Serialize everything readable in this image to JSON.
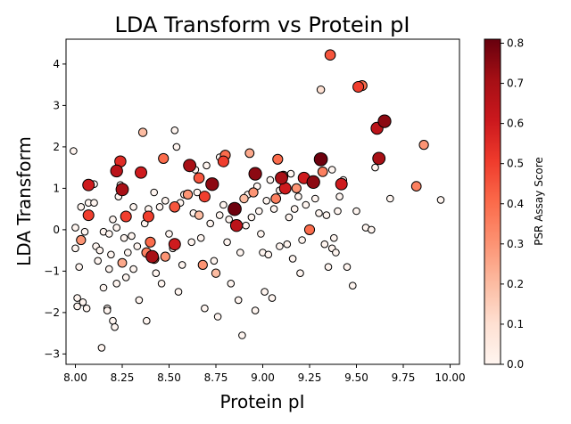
{
  "chart_data": {
    "type": "scatter",
    "title": "LDA Transform vs Protein pI",
    "xlabel": "Protein pI",
    "ylabel": "LDA Transform",
    "xlim": [
      7.95,
      10.05
    ],
    "ylim": [
      -3.25,
      4.6
    ],
    "xticks": [
      "8.00",
      "8.25",
      "8.50",
      "8.75",
      "9.00",
      "9.25",
      "9.50",
      "9.75",
      "10.00"
    ],
    "xtick_values": [
      8.0,
      8.25,
      8.5,
      8.75,
      9.0,
      9.25,
      9.5,
      9.75,
      10.0
    ],
    "yticks": [
      "−3",
      "−2",
      "−1",
      "0",
      "1",
      "2",
      "3",
      "4"
    ],
    "ytick_values": [
      -3,
      -2,
      -1,
      0,
      1,
      2,
      3,
      4
    ],
    "grid": false,
    "colorbar": {
      "label": "PSR Assay Score",
      "range": [
        0.0,
        0.81
      ],
      "ticks": [
        "0.0",
        "0.1",
        "0.2",
        "0.3",
        "0.4",
        "0.5",
        "0.6",
        "0.7",
        "0.8"
      ],
      "tick_values": [
        0.0,
        0.1,
        0.2,
        0.3,
        0.4,
        0.5,
        0.6,
        0.7,
        0.8
      ],
      "colormap": "Reds",
      "stops": [
        "#fff5f0",
        "#fee0d2",
        "#fcbba1",
        "#fc9272",
        "#fb6a4a",
        "#ef3b2c",
        "#cb181d",
        "#a50f15",
        "#67000d"
      ]
    },
    "points": [
      {
        "x": 7.99,
        "y": 1.9,
        "score": 0.0
      },
      {
        "x": 8.0,
        "y": 0.05,
        "score": 0.0
      },
      {
        "x": 8.0,
        "y": -0.45,
        "score": 0.0
      },
      {
        "x": 8.02,
        "y": -0.9,
        "score": 0.0
      },
      {
        "x": 8.01,
        "y": -1.65,
        "score": 0.0
      },
      {
        "x": 8.01,
        "y": -1.85,
        "score": 0.0
      },
      {
        "x": 8.04,
        "y": -1.75,
        "score": 0.0
      },
      {
        "x": 8.03,
        "y": 0.55,
        "score": 0.0
      },
      {
        "x": 8.05,
        "y": -0.05,
        "score": 0.0
      },
      {
        "x": 8.06,
        "y": -1.9,
        "score": 0.0
      },
      {
        "x": 8.07,
        "y": 0.65,
        "score": 0.0
      },
      {
        "x": 8.03,
        "y": -0.25,
        "score": 0.3
      },
      {
        "x": 8.07,
        "y": 0.35,
        "score": 0.5
      },
      {
        "x": 8.07,
        "y": 1.08,
        "score": 0.6
      },
      {
        "x": 8.1,
        "y": 1.1,
        "score": 0.0
      },
      {
        "x": 8.1,
        "y": 0.65,
        "score": 0.0
      },
      {
        "x": 8.11,
        "y": -0.4,
        "score": 0.0
      },
      {
        "x": 8.12,
        "y": -0.75,
        "score": 0.0
      },
      {
        "x": 8.13,
        "y": -0.5,
        "score": 0.0
      },
      {
        "x": 8.15,
        "y": -0.05,
        "score": 0.0
      },
      {
        "x": 8.15,
        "y": -1.4,
        "score": 0.0
      },
      {
        "x": 8.14,
        "y": -2.85,
        "score": 0.0
      },
      {
        "x": 8.17,
        "y": -1.9,
        "score": 0.0
      },
      {
        "x": 8.17,
        "y": -1.95,
        "score": 0.0
      },
      {
        "x": 8.18,
        "y": -0.95,
        "score": 0.0
      },
      {
        "x": 8.18,
        "y": -0.1,
        "score": 0.0
      },
      {
        "x": 8.19,
        "y": -0.6,
        "score": 0.0
      },
      {
        "x": 8.2,
        "y": 0.25,
        "score": 0.0
      },
      {
        "x": 8.2,
        "y": -2.2,
        "score": 0.0
      },
      {
        "x": 8.21,
        "y": -2.35,
        "score": 0.0
      },
      {
        "x": 8.22,
        "y": -1.3,
        "score": 0.0
      },
      {
        "x": 8.22,
        "y": 0.05,
        "score": 0.0
      },
      {
        "x": 8.22,
        "y": 1.42,
        "score": 0.65
      },
      {
        "x": 8.23,
        "y": 0.8,
        "score": 0.0
      },
      {
        "x": 8.24,
        "y": 1.65,
        "score": 0.55
      },
      {
        "x": 8.25,
        "y": 0.97,
        "score": 0.7
      },
      {
        "x": 8.24,
        "y": 1.08,
        "score": 0.0
      },
      {
        "x": 8.25,
        "y": -0.8,
        "score": 0.25
      },
      {
        "x": 8.26,
        "y": -0.2,
        "score": 0.0
      },
      {
        "x": 8.27,
        "y": -1.15,
        "score": 0.0
      },
      {
        "x": 8.27,
        "y": 0.32,
        "score": 0.5
      },
      {
        "x": 8.28,
        "y": -0.55,
        "score": 0.0
      },
      {
        "x": 8.3,
        "y": -0.15,
        "score": 0.0
      },
      {
        "x": 8.31,
        "y": -0.95,
        "score": 0.0
      },
      {
        "x": 8.31,
        "y": 0.55,
        "score": 0.0
      },
      {
        "x": 8.33,
        "y": -0.4,
        "score": 0.0
      },
      {
        "x": 8.34,
        "y": -1.7,
        "score": 0.0
      },
      {
        "x": 8.35,
        "y": 1.38,
        "score": 0.6
      },
      {
        "x": 8.36,
        "y": 2.35,
        "score": 0.2
      },
      {
        "x": 8.37,
        "y": 0.15,
        "score": 0.0
      },
      {
        "x": 8.38,
        "y": -2.2,
        "score": 0.0
      },
      {
        "x": 8.38,
        "y": -0.55,
        "score": 0.35
      },
      {
        "x": 8.39,
        "y": 0.32,
        "score": 0.5
      },
      {
        "x": 8.39,
        "y": 0.5,
        "score": 0.0
      },
      {
        "x": 8.4,
        "y": -0.3,
        "score": 0.4
      },
      {
        "x": 8.41,
        "y": -0.65,
        "score": 0.7
      },
      {
        "x": 8.42,
        "y": -0.7,
        "score": 0.35
      },
      {
        "x": 8.42,
        "y": 0.9,
        "score": 0.0
      },
      {
        "x": 8.43,
        "y": -1.05,
        "score": 0.0
      },
      {
        "x": 8.45,
        "y": 0.55,
        "score": 0.0
      },
      {
        "x": 8.46,
        "y": -1.3,
        "score": 0.0
      },
      {
        "x": 8.47,
        "y": 1.72,
        "score": 0.4
      },
      {
        "x": 8.48,
        "y": -0.65,
        "score": 0.3
      },
      {
        "x": 8.48,
        "y": 0.7,
        "score": 0.0
      },
      {
        "x": 8.5,
        "y": -0.1,
        "score": 0.0
      },
      {
        "x": 8.52,
        "y": -0.45,
        "score": 0.0
      },
      {
        "x": 8.53,
        "y": -0.35,
        "score": 0.6
      },
      {
        "x": 8.53,
        "y": 0.55,
        "score": 0.45
      },
      {
        "x": 8.53,
        "y": 2.4,
        "score": 0.0
      },
      {
        "x": 8.54,
        "y": 2.0,
        "score": 0.0
      },
      {
        "x": 8.55,
        "y": -1.5,
        "score": 0.0
      },
      {
        "x": 8.56,
        "y": 0.65,
        "score": 0.0
      },
      {
        "x": 8.57,
        "y": -0.85,
        "score": 0.0
      },
      {
        "x": 8.58,
        "y": 0.85,
        "score": 0.0
      },
      {
        "x": 8.6,
        "y": 0.85,
        "score": 0.3
      },
      {
        "x": 8.61,
        "y": 1.55,
        "score": 0.7
      },
      {
        "x": 8.62,
        "y": -0.3,
        "score": 0.0
      },
      {
        "x": 8.63,
        "y": 0.4,
        "score": 0.0
      },
      {
        "x": 8.64,
        "y": 1.45,
        "score": 0.0
      },
      {
        "x": 8.65,
        "y": 0.9,
        "score": 0.0
      },
      {
        "x": 8.66,
        "y": 0.35,
        "score": 0.2
      },
      {
        "x": 8.66,
        "y": 1.25,
        "score": 0.45
      },
      {
        "x": 8.67,
        "y": -0.2,
        "score": 0.0
      },
      {
        "x": 8.68,
        "y": -0.85,
        "score": 0.3
      },
      {
        "x": 8.69,
        "y": 0.8,
        "score": 0.5
      },
      {
        "x": 8.69,
        "y": -1.9,
        "score": 0.0
      },
      {
        "x": 8.7,
        "y": 1.55,
        "score": 0.0
      },
      {
        "x": 8.72,
        "y": 0.15,
        "score": 0.0
      },
      {
        "x": 8.73,
        "y": 1.1,
        "score": 0.75
      },
      {
        "x": 8.74,
        "y": -0.75,
        "score": 0.0
      },
      {
        "x": 8.75,
        "y": -1.05,
        "score": 0.2
      },
      {
        "x": 8.76,
        "y": -2.1,
        "score": 0.0
      },
      {
        "x": 8.77,
        "y": 1.75,
        "score": 0.0
      },
      {
        "x": 8.77,
        "y": 0.35,
        "score": 0.0
      },
      {
        "x": 8.79,
        "y": 1.65,
        "score": 0.5
      },
      {
        "x": 8.79,
        "y": 0.6,
        "score": 0.0
      },
      {
        "x": 8.8,
        "y": 1.8,
        "score": 0.4
      },
      {
        "x": 8.81,
        "y": -0.3,
        "score": 0.0
      },
      {
        "x": 8.82,
        "y": 0.25,
        "score": 0.0
      },
      {
        "x": 8.83,
        "y": -1.3,
        "score": 0.0
      },
      {
        "x": 8.84,
        "y": 0.5,
        "score": 0.0
      },
      {
        "x": 8.85,
        "y": 0.5,
        "score": 0.8
      },
      {
        "x": 8.86,
        "y": 0.1,
        "score": 0.65
      },
      {
        "x": 8.87,
        "y": -1.7,
        "score": 0.0
      },
      {
        "x": 8.88,
        "y": -0.55,
        "score": 0.0
      },
      {
        "x": 8.89,
        "y": -2.55,
        "score": 0.0
      },
      {
        "x": 8.9,
        "y": 0.75,
        "score": 0.2
      },
      {
        "x": 8.91,
        "y": 0.1,
        "score": 0.0
      },
      {
        "x": 8.92,
        "y": 0.85,
        "score": 0.0
      },
      {
        "x": 8.93,
        "y": 1.85,
        "score": 0.25
      },
      {
        "x": 8.94,
        "y": 0.3,
        "score": 0.0
      },
      {
        "x": 8.95,
        "y": 0.9,
        "score": 0.3
      },
      {
        "x": 8.96,
        "y": 1.35,
        "score": 0.75
      },
      {
        "x": 8.96,
        "y": -1.95,
        "score": 0.0
      },
      {
        "x": 8.97,
        "y": 1.05,
        "score": 0.0
      },
      {
        "x": 8.98,
        "y": 0.45,
        "score": 0.0
      },
      {
        "x": 8.99,
        "y": -0.1,
        "score": 0.0
      },
      {
        "x": 9.0,
        "y": -0.55,
        "score": 0.0
      },
      {
        "x": 9.01,
        "y": -1.5,
        "score": 0.0
      },
      {
        "x": 9.02,
        "y": 0.7,
        "score": 0.0
      },
      {
        "x": 9.03,
        "y": -0.6,
        "score": 0.0
      },
      {
        "x": 9.04,
        "y": 1.2,
        "score": 0.0
      },
      {
        "x": 9.05,
        "y": -1.65,
        "score": 0.0
      },
      {
        "x": 9.06,
        "y": 0.5,
        "score": 0.0
      },
      {
        "x": 9.07,
        "y": 0.75,
        "score": 0.35
      },
      {
        "x": 9.08,
        "y": 1.7,
        "score": 0.4
      },
      {
        "x": 9.09,
        "y": 0.95,
        "score": 0.0
      },
      {
        "x": 9.09,
        "y": -0.4,
        "score": 0.0
      },
      {
        "x": 9.1,
        "y": 1.25,
        "score": 0.7
      },
      {
        "x": 9.11,
        "y": 1.3,
        "score": 0.3
      },
      {
        "x": 9.12,
        "y": 1.0,
        "score": 0.6
      },
      {
        "x": 9.13,
        "y": -0.35,
        "score": 0.0
      },
      {
        "x": 9.14,
        "y": 0.3,
        "score": 0.0
      },
      {
        "x": 9.15,
        "y": 1.35,
        "score": 0.0
      },
      {
        "x": 9.16,
        "y": -0.7,
        "score": 0.0
      },
      {
        "x": 9.17,
        "y": 0.5,
        "score": 0.0
      },
      {
        "x": 9.18,
        "y": 1.0,
        "score": 0.3
      },
      {
        "x": 9.19,
        "y": 0.8,
        "score": 0.0
      },
      {
        "x": 9.2,
        "y": -1.05,
        "score": 0.0
      },
      {
        "x": 9.21,
        "y": -0.25,
        "score": 0.0
      },
      {
        "x": 9.22,
        "y": 1.25,
        "score": 0.6
      },
      {
        "x": 9.23,
        "y": 0.6,
        "score": 0.0
      },
      {
        "x": 9.25,
        "y": 0.0,
        "score": 0.4
      },
      {
        "x": 9.27,
        "y": 1.15,
        "score": 0.75
      },
      {
        "x": 9.28,
        "y": 0.75,
        "score": 0.0
      },
      {
        "x": 9.3,
        "y": 0.4,
        "score": 0.0
      },
      {
        "x": 9.31,
        "y": 3.38,
        "score": 0.1
      },
      {
        "x": 9.31,
        "y": 1.7,
        "score": 0.8
      },
      {
        "x": 9.32,
        "y": 1.4,
        "score": 0.35
      },
      {
        "x": 9.33,
        "y": -0.35,
        "score": 0.0
      },
      {
        "x": 9.34,
        "y": 0.35,
        "score": 0.0
      },
      {
        "x": 9.35,
        "y": -0.9,
        "score": 0.0
      },
      {
        "x": 9.36,
        "y": 4.22,
        "score": 0.45
      },
      {
        "x": 9.37,
        "y": 1.45,
        "score": 0.0
      },
      {
        "x": 9.37,
        "y": -0.45,
        "score": 0.0
      },
      {
        "x": 9.38,
        "y": -0.2,
        "score": 0.0
      },
      {
        "x": 9.39,
        "y": -0.55,
        "score": 0.0
      },
      {
        "x": 9.4,
        "y": 0.45,
        "score": 0.0
      },
      {
        "x": 9.41,
        "y": 0.8,
        "score": 0.0
      },
      {
        "x": 9.42,
        "y": 1.1,
        "score": 0.6
      },
      {
        "x": 9.43,
        "y": 1.2,
        "score": 0.0
      },
      {
        "x": 9.45,
        "y": -0.9,
        "score": 0.0
      },
      {
        "x": 9.48,
        "y": -1.35,
        "score": 0.0
      },
      {
        "x": 9.5,
        "y": 0.45,
        "score": 0.0
      },
      {
        "x": 9.51,
        "y": 3.45,
        "score": 0.5
      },
      {
        "x": 9.53,
        "y": 3.48,
        "score": 0.4
      },
      {
        "x": 9.55,
        "y": 0.05,
        "score": 0.0
      },
      {
        "x": 9.58,
        "y": 0.0,
        "score": 0.0
      },
      {
        "x": 9.6,
        "y": 1.5,
        "score": 0.0
      },
      {
        "x": 9.61,
        "y": 2.45,
        "score": 0.65
      },
      {
        "x": 9.62,
        "y": 1.72,
        "score": 0.7
      },
      {
        "x": 9.65,
        "y": 2.62,
        "score": 0.75
      },
      {
        "x": 9.68,
        "y": 0.75,
        "score": 0.0
      },
      {
        "x": 9.82,
        "y": 1.05,
        "score": 0.35
      },
      {
        "x": 9.86,
        "y": 2.05,
        "score": 0.3
      },
      {
        "x": 9.95,
        "y": 0.72,
        "score": 0.0
      }
    ]
  }
}
